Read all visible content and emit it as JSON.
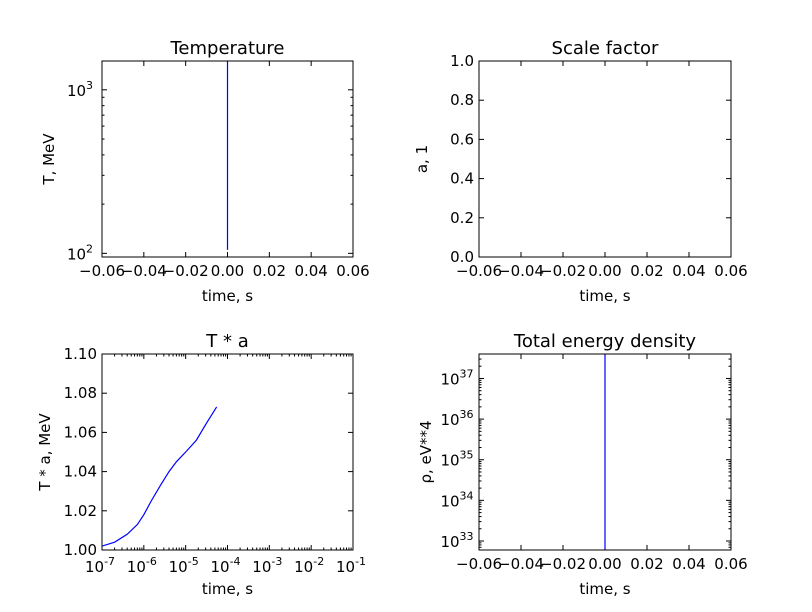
{
  "chart_data": [
    {
      "type": "line",
      "title": "Temperature",
      "xlabel": "time, s",
      "ylabel": "T, MeV",
      "xscale": "linear",
      "yscale": "log",
      "xlim": [
        -0.06,
        0.06
      ],
      "ylim": [
        95,
        1500
      ],
      "xticks": [
        "−0.06",
        "−0.04",
        "−0.02",
        "0.00",
        "0.02",
        "0.04",
        "0.06"
      ],
      "yticks": [
        {
          "base": "10",
          "exp": "2",
          "value": 100
        },
        {
          "base": "10",
          "exp": "3",
          "value": 1000
        }
      ],
      "series": [
        {
          "color": "#0000ff",
          "x": [
            0.0,
            0.0,
            0.0,
            0.0
          ],
          "y": [
            105,
            300,
            800,
            1500
          ]
        }
      ]
    },
    {
      "type": "line",
      "title": "Scale factor",
      "xlabel": "time, s",
      "ylabel": "a, 1",
      "xscale": "linear",
      "yscale": "linear",
      "xlim": [
        -0.06,
        0.06
      ],
      "ylim": [
        0.0,
        1.0
      ],
      "xticks": [
        "−0.06",
        "−0.04",
        "−0.02",
        "0.00",
        "0.02",
        "0.04",
        "0.06"
      ],
      "yticks": [
        "0.0",
        "0.2",
        "0.4",
        "0.6",
        "0.8",
        "1.0"
      ],
      "series": []
    },
    {
      "type": "line",
      "title": "T * a",
      "xlabel": "time, s",
      "ylabel": "T * a, MeV",
      "xscale": "log",
      "yscale": "linear",
      "xlim": [
        1e-07,
        0.1
      ],
      "ylim": [
        1.0,
        1.1
      ],
      "xticks": [
        {
          "base": "10",
          "exp": "-7",
          "value": 1e-07
        },
        {
          "base": "10",
          "exp": "-6",
          "value": 1e-06
        },
        {
          "base": "10",
          "exp": "-5",
          "value": 1e-05
        },
        {
          "base": "10",
          "exp": "-4",
          "value": 0.0001
        },
        {
          "base": "10",
          "exp": "-3",
          "value": 0.001
        },
        {
          "base": "10",
          "exp": "-2",
          "value": 0.01
        },
        {
          "base": "10",
          "exp": "-1",
          "value": 0.1
        }
      ],
      "yticks": [
        "1.00",
        "1.02",
        "1.04",
        "1.06",
        "1.08",
        "1.10"
      ],
      "series": [
        {
          "color": "#0000ff",
          "x": [
            1e-07,
            2e-07,
            4e-07,
            7e-07,
            1e-06,
            1.5e-06,
            2.5e-06,
            4e-06,
            6e-06,
            1e-05,
            1.8e-05,
            3e-05,
            4.5e-05,
            5.5e-05
          ],
          "y": [
            1.002,
            1.004,
            1.008,
            1.013,
            1.018,
            1.025,
            1.033,
            1.04,
            1.045,
            1.05,
            1.056,
            1.064,
            1.07,
            1.073
          ]
        }
      ]
    },
    {
      "type": "line",
      "title": "Total energy density",
      "xlabel": "time, s",
      "ylabel": "ρ, eV**4",
      "xscale": "linear",
      "yscale": "log",
      "xlim": [
        -0.06,
        0.06
      ],
      "ylim": [
        6e+32,
        4e+37
      ],
      "xticks": [
        "−0.06",
        "−0.04",
        "−0.02",
        "0.00",
        "0.02",
        "0.04",
        "0.06"
      ],
      "yticks": [
        {
          "base": "10",
          "exp": "33",
          "value": 1e+33
        },
        {
          "base": "10",
          "exp": "34",
          "value": 1e+34
        },
        {
          "base": "10",
          "exp": "35",
          "value": 1e+35
        },
        {
          "base": "10",
          "exp": "36",
          "value": 1e+36
        },
        {
          "base": "10",
          "exp": "37",
          "value": 1e+37
        }
      ],
      "series": [
        {
          "color": "#0000ff",
          "x": [
            0.0,
            0.0
          ],
          "y": [
            6e+32,
            4e+37
          ]
        }
      ]
    }
  ]
}
